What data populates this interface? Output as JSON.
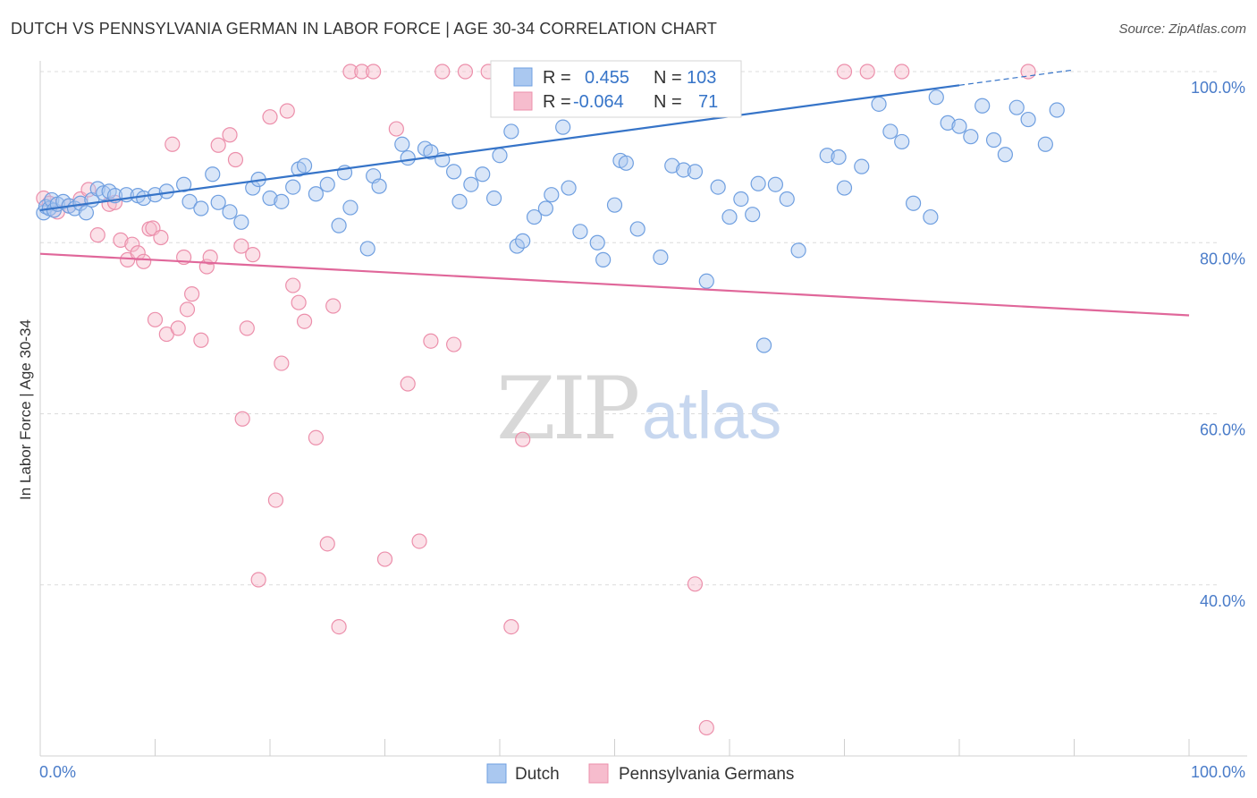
{
  "title": "DUTCH VS PENNSYLVANIA GERMAN IN LABOR FORCE | AGE 30-34 CORRELATION CHART",
  "source": "Source: ZipAtlas.com",
  "watermark": {
    "zip": "ZIP",
    "atlas": "atlas"
  },
  "colors": {
    "dutch_fill": "#aac8f0",
    "dutch_stroke": "#6f9fe0",
    "dutch_line": "#3674c8",
    "penn_fill": "#f6bccd",
    "penn_stroke": "#ec8fab",
    "penn_line": "#e0679a",
    "tick_text": "#4a7cc9",
    "grid": "#dcdcdc"
  },
  "stats_legend": {
    "dutch": {
      "r_label": "R =",
      "r_value": "0.455",
      "n_label": "N =",
      "n_value": "103"
    },
    "penn": {
      "r_label": "R =",
      "r_value": "-0.064",
      "n_label": "N =",
      "n_value": "71"
    }
  },
  "chart_data": {
    "type": "scatter",
    "xlabel": "",
    "ylabel": "In Labor Force | Age 30-34",
    "xlim": [
      0,
      100
    ],
    "ylim": [
      20,
      100
    ],
    "x_tick_labels": [
      "0.0%",
      "100.0%"
    ],
    "y_ticks": [
      40,
      60,
      80,
      100
    ],
    "y_tick_labels": [
      "40.0%",
      "60.0%",
      "80.0%",
      "100.0%"
    ],
    "grid": true,
    "legend_position": "bottom-center",
    "series": [
      {
        "name": "Dutch",
        "trend": {
          "x": [
            0,
            80,
            90
          ],
          "y": [
            83.8,
            98.4,
            100.2
          ],
          "solid_until": 80
        },
        "points": [
          [
            0.3,
            83.5
          ],
          [
            0.5,
            84.2
          ],
          [
            0.8,
            84.0
          ],
          [
            1.0,
            85.0
          ],
          [
            1.2,
            83.8
          ],
          [
            1.5,
            84.5
          ],
          [
            2.0,
            84.8
          ],
          [
            2.5,
            84.3
          ],
          [
            3.0,
            84.0
          ],
          [
            3.5,
            84.6
          ],
          [
            4.0,
            83.5
          ],
          [
            4.5,
            85.0
          ],
          [
            5.0,
            86.3
          ],
          [
            5.5,
            85.8
          ],
          [
            6.0,
            86.0
          ],
          [
            6.5,
            85.5
          ],
          [
            7.5,
            85.6
          ],
          [
            8.5,
            85.5
          ],
          [
            9.0,
            85.2
          ],
          [
            10.0,
            85.6
          ],
          [
            11.0,
            86.0
          ],
          [
            12.5,
            86.8
          ],
          [
            13.0,
            84.8
          ],
          [
            14.0,
            84.0
          ],
          [
            15.0,
            88.0
          ],
          [
            15.5,
            84.7
          ],
          [
            16.5,
            83.6
          ],
          [
            17.5,
            82.4
          ],
          [
            18.5,
            86.4
          ],
          [
            19.0,
            87.4
          ],
          [
            20.0,
            85.2
          ],
          [
            21.0,
            84.8
          ],
          [
            22.0,
            86.5
          ],
          [
            22.5,
            88.6
          ],
          [
            23.0,
            89.0
          ],
          [
            24.0,
            85.7
          ],
          [
            25.0,
            86.8
          ],
          [
            26.0,
            82.0
          ],
          [
            26.5,
            88.2
          ],
          [
            27.0,
            84.1
          ],
          [
            28.5,
            79.3
          ],
          [
            29.0,
            87.8
          ],
          [
            29.5,
            86.6
          ],
          [
            31.5,
            91.5
          ],
          [
            32.0,
            89.9
          ],
          [
            33.5,
            91.0
          ],
          [
            34.0,
            90.6
          ],
          [
            35.0,
            89.7
          ],
          [
            36.0,
            88.3
          ],
          [
            36.5,
            84.8
          ],
          [
            37.5,
            86.8
          ],
          [
            38.5,
            88.0
          ],
          [
            39.5,
            85.2
          ],
          [
            40.0,
            90.2
          ],
          [
            41.0,
            93.0
          ],
          [
            41.5,
            79.6
          ],
          [
            42.0,
            80.2
          ],
          [
            43.0,
            83.0
          ],
          [
            44.0,
            84.0
          ],
          [
            44.5,
            85.6
          ],
          [
            45.5,
            93.5
          ],
          [
            46.0,
            86.4
          ],
          [
            47.0,
            81.3
          ],
          [
            48.5,
            80.0
          ],
          [
            49.0,
            78.0
          ],
          [
            50.0,
            84.4
          ],
          [
            50.5,
            89.6
          ],
          [
            51.0,
            89.3
          ],
          [
            52.0,
            81.6
          ],
          [
            54.0,
            78.3
          ],
          [
            55.0,
            89.0
          ],
          [
            56.0,
            88.5
          ],
          [
            57.0,
            88.3
          ],
          [
            58.0,
            75.5
          ],
          [
            59.0,
            86.5
          ],
          [
            60.0,
            83.0
          ],
          [
            61.0,
            85.1
          ],
          [
            62.0,
            83.3
          ],
          [
            62.5,
            86.9
          ],
          [
            63.0,
            68.0
          ],
          [
            64.0,
            86.8
          ],
          [
            65.0,
            85.1
          ],
          [
            66.0,
            79.1
          ],
          [
            68.5,
            90.2
          ],
          [
            69.5,
            90.0
          ],
          [
            70.0,
            86.4
          ],
          [
            71.5,
            88.9
          ],
          [
            73.0,
            96.2
          ],
          [
            74.0,
            93.0
          ],
          [
            75.0,
            91.8
          ],
          [
            76.0,
            84.6
          ],
          [
            77.5,
            83.0
          ],
          [
            78.0,
            97.0
          ],
          [
            79.0,
            94.0
          ],
          [
            80.0,
            93.6
          ],
          [
            81.0,
            92.4
          ],
          [
            82.0,
            96.0
          ],
          [
            83.0,
            92.0
          ],
          [
            84.0,
            90.3
          ],
          [
            85.0,
            95.8
          ],
          [
            86.0,
            94.4
          ],
          [
            87.5,
            91.5
          ],
          [
            88.5,
            95.5
          ]
        ]
      },
      {
        "name": "Pennsylvania Germans",
        "trend": {
          "x": [
            0,
            100
          ],
          "y": [
            78.7,
            71.5
          ]
        },
        "points": [
          [
            0.3,
            85.2
          ],
          [
            0.8,
            84.6
          ],
          [
            1.5,
            83.6
          ],
          [
            2.5,
            84.3
          ],
          [
            3.5,
            85.1
          ],
          [
            4.2,
            86.2
          ],
          [
            5.0,
            80.9
          ],
          [
            6.0,
            84.5
          ],
          [
            6.5,
            84.7
          ],
          [
            7.0,
            80.3
          ],
          [
            7.6,
            78.0
          ],
          [
            8.0,
            79.8
          ],
          [
            8.5,
            78.8
          ],
          [
            9.0,
            77.8
          ],
          [
            9.5,
            81.6
          ],
          [
            9.8,
            81.7
          ],
          [
            10.0,
            71.0
          ],
          [
            10.5,
            80.6
          ],
          [
            11.0,
            69.3
          ],
          [
            11.5,
            91.5
          ],
          [
            12.0,
            70.0
          ],
          [
            12.5,
            78.3
          ],
          [
            12.8,
            72.2
          ],
          [
            13.2,
            74.0
          ],
          [
            14.0,
            68.6
          ],
          [
            14.5,
            77.2
          ],
          [
            14.8,
            78.3
          ],
          [
            15.5,
            91.4
          ],
          [
            16.5,
            92.6
          ],
          [
            17.0,
            89.7
          ],
          [
            17.5,
            79.6
          ],
          [
            17.6,
            59.4
          ],
          [
            18.0,
            70.0
          ],
          [
            18.5,
            78.6
          ],
          [
            19.0,
            40.6
          ],
          [
            20.0,
            94.7
          ],
          [
            20.5,
            49.9
          ],
          [
            21.0,
            65.9
          ],
          [
            21.5,
            95.4
          ],
          [
            22.0,
            75.0
          ],
          [
            22.5,
            73.0
          ],
          [
            23.0,
            70.8
          ],
          [
            24.0,
            57.2
          ],
          [
            25.0,
            44.8
          ],
          [
            25.5,
            72.6
          ],
          [
            26.0,
            35.1
          ],
          [
            27.0,
            100.0
          ],
          [
            28.0,
            100.0
          ],
          [
            29.0,
            100.0
          ],
          [
            30.0,
            43.0
          ],
          [
            31.0,
            93.3
          ],
          [
            32.0,
            63.5
          ],
          [
            33.0,
            45.1
          ],
          [
            34.0,
            68.5
          ],
          [
            35.0,
            100.0
          ],
          [
            36.0,
            68.1
          ],
          [
            37.0,
            100.0
          ],
          [
            39.0,
            100.0
          ],
          [
            40.0,
            100.0
          ],
          [
            41.0,
            35.1
          ],
          [
            42.0,
            57.0
          ],
          [
            44.0,
            100.0
          ],
          [
            46.0,
            100.0
          ],
          [
            55.0,
            100.0
          ],
          [
            57.0,
            40.1
          ],
          [
            58.0,
            23.3
          ],
          [
            60.0,
            100.0
          ],
          [
            70.0,
            100.0
          ],
          [
            72.0,
            100.0
          ],
          [
            75.0,
            100.0
          ],
          [
            86.0,
            100.0
          ]
        ]
      }
    ]
  }
}
